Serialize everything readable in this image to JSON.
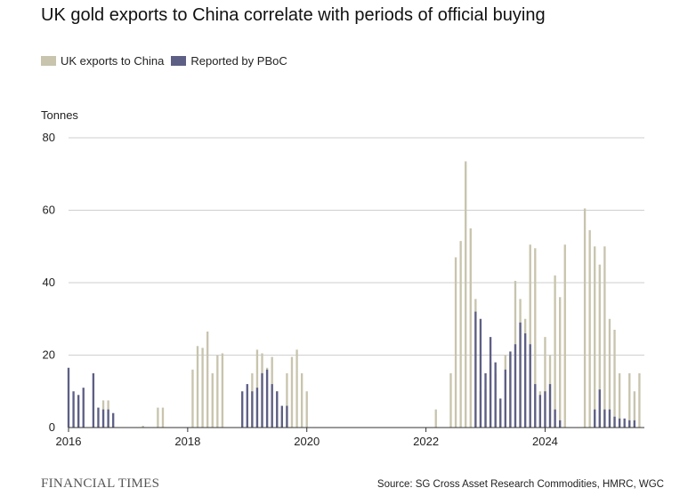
{
  "header": {
    "title": "UK gold exports to China correlate with periods of official buying"
  },
  "legend": {
    "items": [
      {
        "label": "UK exports to China",
        "color": "#c8c4ad"
      },
      {
        "label": "Reported by PBoC",
        "color": "#5d5f85"
      }
    ]
  },
  "footer": {
    "brand": "FINANCIAL TIMES",
    "source": "Source: SG Cross Asset Research Commodities, HMRC, WGC"
  },
  "chart_data": {
    "type": "bar",
    "ylabel": "Tonnes",
    "ylim": [
      0,
      80
    ],
    "yticks": [
      0,
      20,
      40,
      60,
      80
    ],
    "xlim": [
      "2016-01",
      "2025-09"
    ],
    "xticks": [
      {
        "value": "2016-01",
        "label": "2016"
      },
      {
        "value": "2018-01",
        "label": "2018"
      },
      {
        "value": "2020-01",
        "label": "2020"
      },
      {
        "value": "2022-01",
        "label": "2022"
      },
      {
        "value": "2024-01",
        "label": "2024"
      }
    ],
    "grid": "horizontal",
    "legend_position": "top-left",
    "series": [
      {
        "name": "UK exports to China",
        "color": "#c8c4ad",
        "points": [
          [
            "2016-03",
            7.5
          ],
          [
            "2016-08",
            7.5
          ],
          [
            "2016-09",
            7.5
          ],
          [
            "2017-04",
            0.5
          ],
          [
            "2017-07",
            5.5
          ],
          [
            "2017-08",
            5.5
          ],
          [
            "2018-02",
            16
          ],
          [
            "2018-03",
            22.5
          ],
          [
            "2018-04",
            22
          ],
          [
            "2018-05",
            26.5
          ],
          [
            "2018-06",
            15
          ],
          [
            "2018-07",
            20
          ],
          [
            "2018-08",
            20.5
          ],
          [
            "2019-02",
            15
          ],
          [
            "2019-03",
            21.5
          ],
          [
            "2019-04",
            20.5
          ],
          [
            "2019-05",
            16.5
          ],
          [
            "2019-06",
            19.5
          ],
          [
            "2019-07",
            10
          ],
          [
            "2019-08",
            4.5
          ],
          [
            "2019-09",
            15
          ],
          [
            "2019-10",
            19.5
          ],
          [
            "2019-11",
            21.5
          ],
          [
            "2019-12",
            15
          ],
          [
            "2020-01",
            10
          ],
          [
            "2022-03",
            5
          ],
          [
            "2022-06",
            15
          ],
          [
            "2022-07",
            47
          ],
          [
            "2022-08",
            51.5
          ],
          [
            "2022-09",
            73.5
          ],
          [
            "2022-10",
            55
          ],
          [
            "2022-11",
            35.5
          ],
          [
            "2022-12",
            10
          ],
          [
            "2023-01",
            10.5
          ],
          [
            "2023-02",
            18
          ],
          [
            "2023-03",
            15
          ],
          [
            "2023-04",
            5
          ],
          [
            "2023-05",
            20
          ],
          [
            "2023-06",
            20
          ],
          [
            "2023-07",
            40.5
          ],
          [
            "2023-08",
            35.5
          ],
          [
            "2023-09",
            30
          ],
          [
            "2023-10",
            50.5
          ],
          [
            "2023-11",
            49.5
          ],
          [
            "2023-12",
            10
          ],
          [
            "2024-01",
            25
          ],
          [
            "2024-02",
            20
          ],
          [
            "2024-03",
            42
          ],
          [
            "2024-04",
            36
          ],
          [
            "2024-05",
            50.5
          ],
          [
            "2024-09",
            60.5
          ],
          [
            "2024-10",
            54.5
          ],
          [
            "2024-11",
            50
          ],
          [
            "2024-12",
            45
          ],
          [
            "2025-01",
            50
          ],
          [
            "2025-02",
            30
          ],
          [
            "2025-03",
            27
          ],
          [
            "2025-04",
            15
          ],
          [
            "2025-06",
            15
          ],
          [
            "2025-07",
            10
          ],
          [
            "2025-08",
            15
          ]
        ]
      },
      {
        "name": "Reported by PBoC",
        "color": "#5d5f85",
        "points": [
          [
            "2016-01",
            16.5
          ],
          [
            "2016-02",
            10
          ],
          [
            "2016-03",
            9
          ],
          [
            "2016-04",
            11
          ],
          [
            "2016-06",
            15
          ],
          [
            "2016-07",
            5.5
          ],
          [
            "2016-08",
            5
          ],
          [
            "2016-09",
            5
          ],
          [
            "2016-10",
            4
          ],
          [
            "2018-12",
            10
          ],
          [
            "2019-01",
            12
          ],
          [
            "2019-02",
            10
          ],
          [
            "2019-03",
            11
          ],
          [
            "2019-04",
            15
          ],
          [
            "2019-05",
            16
          ],
          [
            "2019-06",
            12
          ],
          [
            "2019-07",
            10
          ],
          [
            "2019-08",
            6
          ],
          [
            "2019-09",
            6
          ],
          [
            "2022-11",
            32
          ],
          [
            "2022-12",
            30
          ],
          [
            "2023-01",
            15
          ],
          [
            "2023-02",
            25
          ],
          [
            "2023-03",
            18
          ],
          [
            "2023-04",
            8
          ],
          [
            "2023-05",
            16
          ],
          [
            "2023-06",
            21
          ],
          [
            "2023-07",
            23
          ],
          [
            "2023-08",
            29
          ],
          [
            "2023-09",
            26
          ],
          [
            "2023-10",
            23
          ],
          [
            "2023-11",
            12
          ],
          [
            "2023-12",
            9
          ],
          [
            "2024-01",
            10
          ],
          [
            "2024-02",
            12
          ],
          [
            "2024-03",
            5
          ],
          [
            "2024-04",
            2
          ],
          [
            "2024-11",
            5
          ],
          [
            "2024-12",
            10.5
          ],
          [
            "2025-01",
            5
          ],
          [
            "2025-02",
            5
          ],
          [
            "2025-03",
            3
          ],
          [
            "2025-04",
            2.5
          ],
          [
            "2025-05",
            2.5
          ],
          [
            "2025-06",
            2
          ],
          [
            "2025-07",
            2
          ]
        ]
      }
    ]
  }
}
